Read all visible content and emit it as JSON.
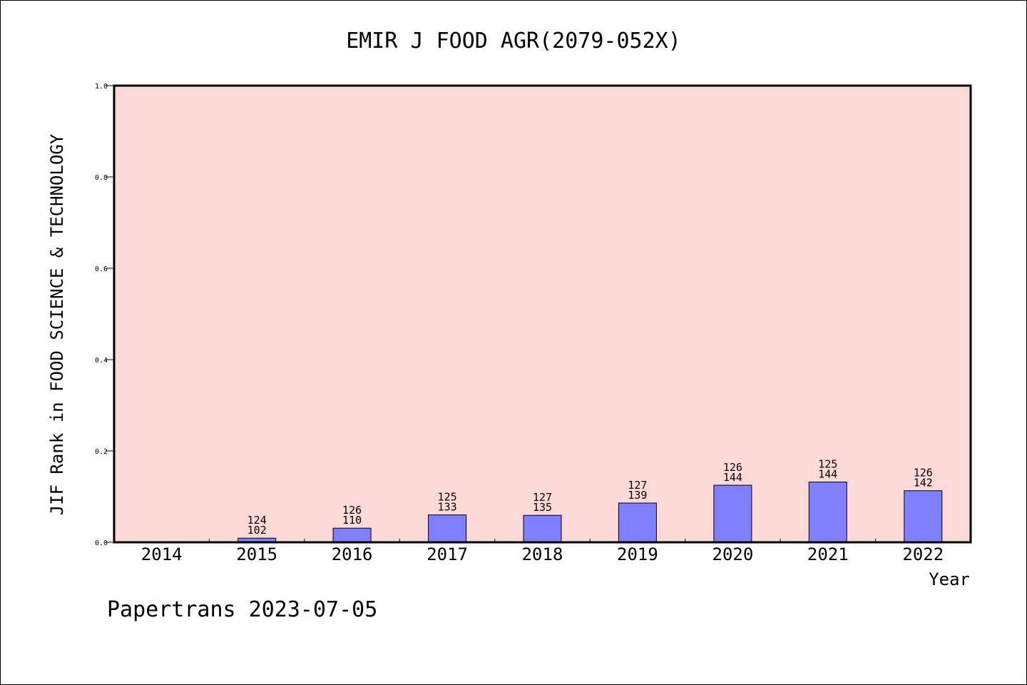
{
  "chart_data": {
    "type": "bar",
    "title": "EMIR J FOOD AGR(2079-052X)",
    "xlabel": "Year",
    "ylabel": "JIF Rank in FOOD SCIENCE & TECHNOLOGY",
    "ylim": [
      0.0,
      1.0
    ],
    "yticks": [
      "0.0",
      "0.2",
      "0.4",
      "0.6",
      "0.8",
      "1.0"
    ],
    "grid": false,
    "categories": [
      "2014",
      "2015",
      "2016",
      "2017",
      "2018",
      "2019",
      "2020",
      "2021",
      "2022"
    ],
    "values": [
      null,
      0.009,
      0.031,
      0.06,
      0.059,
      0.086,
      0.125,
      0.132,
      0.113
    ],
    "labels": [
      null,
      {
        "rank": "124",
        "total": "102"
      },
      {
        "rank": "126",
        "total": "110"
      },
      {
        "rank": "125",
        "total": "133"
      },
      {
        "rank": "127",
        "total": "135"
      },
      {
        "rank": "127",
        "total": "139"
      },
      {
        "rank": "126",
        "total": "144"
      },
      {
        "rank": "125",
        "total": "144"
      },
      {
        "rank": "126",
        "total": "142"
      }
    ]
  },
  "footer": "Papertrans 2023-07-05",
  "colors": {
    "plot_background": "#fddad7",
    "bar_fill": "#8080ff",
    "bar_stroke": "#000000",
    "axis": "#000000"
  }
}
